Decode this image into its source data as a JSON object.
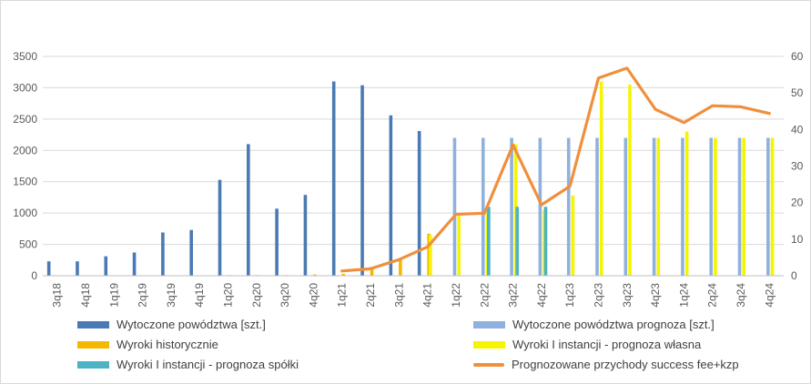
{
  "chart_data": {
    "type": "bar",
    "categories": [
      "3q18",
      "4q18",
      "1q19",
      "2q19",
      "3q19",
      "4q19",
      "1q20",
      "2q20",
      "3q20",
      "4q20",
      "1q21",
      "2q21",
      "3q21",
      "4q21",
      "1q22",
      "2q22",
      "3q22",
      "4q22",
      "1q23",
      "2q23",
      "3q23",
      "4q23",
      "1q24",
      "2q24",
      "3q24",
      "4q24"
    ],
    "series": [
      {
        "name": "Wytoczone powództwa [szt.]",
        "kind": "bar",
        "axis": "left",
        "color": "#4a7ab5",
        "values": [
          230,
          230,
          310,
          370,
          690,
          730,
          1530,
          2100,
          1070,
          1290,
          3100,
          3040,
          2560,
          2310,
          null,
          null,
          null,
          null,
          null,
          null,
          null,
          null,
          null,
          null,
          null,
          null
        ]
      },
      {
        "name": "Wytoczone powództwa prognoza [szt.]",
        "kind": "bar",
        "axis": "left",
        "color": "#8fb1de",
        "values": [
          null,
          null,
          null,
          null,
          null,
          null,
          null,
          null,
          null,
          null,
          null,
          null,
          null,
          null,
          2200,
          2200,
          2200,
          2200,
          2200,
          2200,
          2200,
          2200,
          2200,
          2200,
          2200,
          2200
        ]
      },
      {
        "name": "Wyroki historycznie",
        "kind": "bar",
        "axis": "left",
        "color": "#f5b800",
        "values": [
          null,
          null,
          null,
          null,
          null,
          null,
          10,
          10,
          10,
          20,
          30,
          140,
          280,
          670,
          null,
          null,
          null,
          null,
          null,
          null,
          null,
          null,
          null,
          null,
          null,
          null
        ]
      },
      {
        "name": "Wyroki I instancji - prognoza własna",
        "kind": "bar",
        "axis": "left",
        "color": "#f5f500",
        "values": [
          null,
          null,
          null,
          null,
          null,
          null,
          null,
          null,
          null,
          null,
          null,
          null,
          null,
          650,
          960,
          1000,
          2100,
          1050,
          1280,
          3100,
          3050,
          2200,
          2300,
          2200,
          2200,
          2200
        ]
      },
      {
        "name": "Wyroki I instancji - prognoza spółki",
        "kind": "bar",
        "axis": "left",
        "color": "#4cb3c4",
        "values": [
          null,
          null,
          null,
          null,
          null,
          null,
          null,
          null,
          null,
          null,
          null,
          null,
          null,
          null,
          null,
          1100,
          1100,
          1100,
          null,
          null,
          null,
          null,
          null,
          null,
          null,
          null
        ]
      },
      {
        "name": "Prognozowane przychody success fee+kzp",
        "kind": "line",
        "axis": "right",
        "color": "#f08f3c",
        "values": [
          null,
          null,
          null,
          null,
          null,
          null,
          null,
          null,
          null,
          null,
          1.3,
          1.9,
          4.4,
          7.9,
          16.8,
          17.1,
          35.8,
          19.4,
          24.5,
          54.1,
          56.8,
          45.5,
          41.9,
          46.5,
          46.2,
          44.4
        ]
      }
    ],
    "y_left": {
      "min": 0,
      "max": 3500,
      "ticks": [
        "0",
        "500",
        "1000",
        "1500",
        "2000",
        "2500",
        "3000",
        "3500"
      ]
    },
    "y_right": {
      "min": 0,
      "max": 60,
      "ticks": [
        "0",
        "10",
        "20",
        "30",
        "40",
        "50",
        "60"
      ]
    },
    "grid": "horizontal",
    "legend_position": "bottom",
    "title": "",
    "xlabel": "",
    "ylabel": ""
  },
  "legend": [
    {
      "label": "Wytoczone powództwa [szt.]",
      "color": "#4a7ab5",
      "shape": "bar"
    },
    {
      "label": "Wytoczone powództwa prognoza [szt.]",
      "color": "#8fb1de",
      "shape": "bar"
    },
    {
      "label": "Wyroki historycznie",
      "color": "#f5b800",
      "shape": "bar"
    },
    {
      "label": "Wyroki I instancji - prognoza własna",
      "color": "#f5f500",
      "shape": "bar"
    },
    {
      "label": "Wyroki I instancji - prognoza spółki",
      "color": "#4cb3c4",
      "shape": "bar"
    },
    {
      "label": "Prognozowane przychody success fee+kzp",
      "color": "#f08f3c",
      "shape": "line"
    }
  ]
}
